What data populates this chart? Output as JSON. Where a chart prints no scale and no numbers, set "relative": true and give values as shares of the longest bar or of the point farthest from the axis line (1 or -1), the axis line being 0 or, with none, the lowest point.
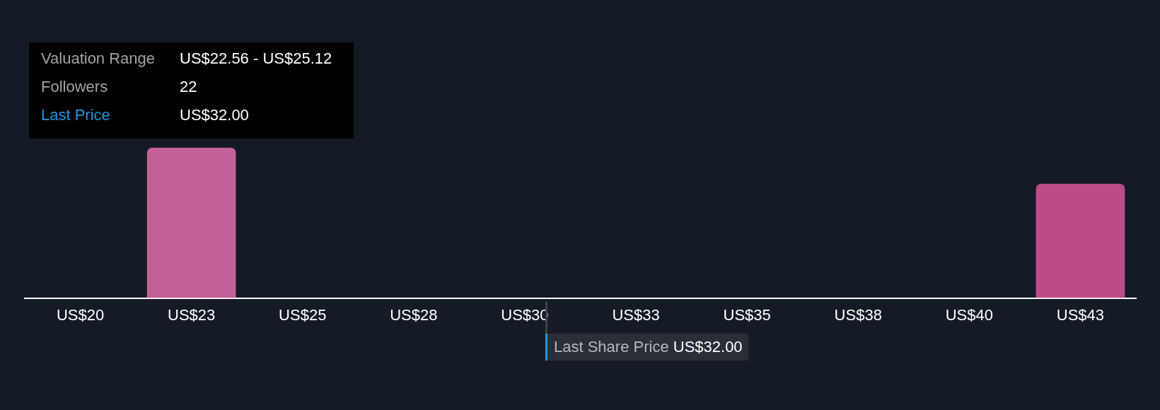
{
  "chart_data": {
    "type": "bar",
    "categories": [
      "US$20",
      "US$23",
      "US$25",
      "US$28",
      "US$30",
      "US$33",
      "US$35",
      "US$38",
      "US$40",
      "US$43"
    ],
    "values": [
      0,
      1,
      0,
      0,
      0,
      0,
      0,
      0,
      0,
      0.76
    ],
    "colors": [
      "#c46098",
      "#c46098",
      "#c46098",
      "#c46098",
      "#c46098",
      "#c46098",
      "#c46098",
      "#c46098",
      "#c46098",
      "#bc4c87"
    ],
    "relative": true,
    "annotations": [
      "Valuation Range",
      "US$22.56 - US$25.12",
      "Followers",
      "22",
      "Last Price",
      "US$32.00",
      "Last Share Price US$32.00"
    ],
    "grid": false,
    "legend": false
  }
}
